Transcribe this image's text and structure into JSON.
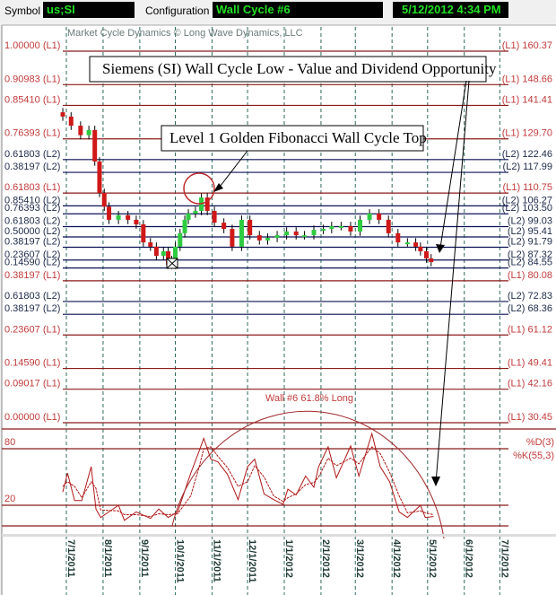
{
  "header": {
    "symbol_label": "Symbol",
    "symbol_value": "us;SI",
    "config_label": "Configuration",
    "config_value": "Wall Cycle #6",
    "datetime": "5/12/2012 4:34 PM"
  },
  "colors": {
    "l1": "#8b1a1a",
    "l1_text": "#c23a3a",
    "l2": "#0c1254",
    "l2_text": "#1e2a4a",
    "up": "#2ecc40",
    "down": "#d01818",
    "grid": "#2e6b5e",
    "value_box_text": "#22e022"
  },
  "chart_data": {
    "type": "candlestick",
    "watermark": "Market Cycle Dynamics © Long Wave Dynamics, LLC",
    "x_ticks": [
      "7/1/2011",
      "8/1/2011",
      "9/1/2011",
      "10/1/2011",
      "11/1/2011",
      "12/1/2011",
      "1/1/2012",
      "2/1/2012",
      "3/1/2012",
      "4/1/2012",
      "5/1/2012",
      "6/1/2012",
      "7/1/2012"
    ],
    "ylim": [
      30.45,
      160.37
    ],
    "levels": [
      {
        "ratio": "1.00000 (L1)",
        "price": 160.37,
        "label": "(L1) 160.37",
        "level": "L1"
      },
      {
        "ratio": "0.90983 (L1)",
        "price": 148.66,
        "label": "(L1) 148.66",
        "level": "L1"
      },
      {
        "ratio": "0.85410 (L1)",
        "price": 141.41,
        "label": "(L1) 141.41",
        "level": "L1"
      },
      {
        "ratio": "0.76393 (L1)",
        "price": 129.7,
        "label": "(L1) 129.70",
        "level": "L1"
      },
      {
        "ratio": "0.61803 (L2)",
        "price": 122.46,
        "label": "(L2) 122.46",
        "level": "L2"
      },
      {
        "ratio": "0.38197 (L2)",
        "price": 117.99,
        "label": "(L2) 117.99",
        "level": "L2"
      },
      {
        "ratio": "0.61803 (L1)",
        "price": 110.75,
        "label": "(L1) 110.75",
        "level": "L1"
      },
      {
        "ratio": "0.85410 (L2)",
        "price": 106.27,
        "label": "(L2) 106.27",
        "level": "L2"
      },
      {
        "ratio": "0.76393 (L2)",
        "price": 103.5,
        "label": "(L2) 103.50",
        "level": "L2"
      },
      {
        "ratio": "0.61803 (L2)",
        "price": 99.03,
        "label": "(L2) 99.03",
        "level": "L2"
      },
      {
        "ratio": "0.50000 (L2)",
        "price": 95.41,
        "label": "(L2) 95.41",
        "level": "L2"
      },
      {
        "ratio": "0.38197 (L2)",
        "price": 91.79,
        "label": "(L2) 91.79",
        "level": "L2"
      },
      {
        "ratio": "0.23607 (L2)",
        "price": 87.32,
        "label": "(L2) 87.32",
        "level": "L2"
      },
      {
        "ratio": "0.14590 (L2)",
        "price": 84.55,
        "label": "(L2) 84.55",
        "level": "L2"
      },
      {
        "ratio": "0.38197 (L1)",
        "price": 80.08,
        "label": "(L1) 80.08",
        "level": "L1"
      },
      {
        "ratio": "0.61803 (L2)",
        "price": 72.83,
        "label": "(L2) 72.83",
        "level": "L2"
      },
      {
        "ratio": "0.38197 (L2)",
        "price": 68.36,
        "label": "(L2) 68.36",
        "level": "L2"
      },
      {
        "ratio": "0.23607 (L1)",
        "price": 61.12,
        "label": "(L1) 61.12",
        "level": "L1"
      },
      {
        "ratio": "0.14590 (L1)",
        "price": 49.41,
        "label": "(L1) 49.41",
        "level": "L1"
      },
      {
        "ratio": "0.09017 (L1)",
        "price": 42.16,
        "label": "(L1) 42.16",
        "level": "L1"
      },
      {
        "ratio": "0.00000 (L1)",
        "price": 30.45,
        "label": "(L1) 30.45",
        "level": "L1"
      }
    ],
    "closes": {
      "dates": [
        "2011-06-28",
        "2011-07-05",
        "2011-07-13",
        "2011-07-20",
        "2011-07-25",
        "2011-07-29",
        "2011-08-02",
        "2011-08-06",
        "2011-08-14",
        "2011-08-22",
        "2011-08-29",
        "2011-09-04",
        "2011-09-10",
        "2011-09-15",
        "2011-09-21",
        "2011-09-25",
        "2011-09-28",
        "2011-10-01",
        "2011-10-05",
        "2011-10-09",
        "2011-10-12",
        "2011-10-18",
        "2011-10-23",
        "2011-10-28",
        "2011-11-03",
        "2011-11-11",
        "2011-11-18",
        "2011-11-26",
        "2011-12-03",
        "2011-12-11",
        "2011-12-18",
        "2011-12-26",
        "2012-01-03",
        "2012-01-11",
        "2012-01-18",
        "2012-01-26",
        "2012-02-03",
        "2012-02-10",
        "2012-02-18",
        "2012-02-26",
        "2012-03-05",
        "2012-03-13",
        "2012-03-21",
        "2012-03-29",
        "2012-04-06",
        "2012-04-14",
        "2012-04-21",
        "2012-04-25",
        "2012-04-30",
        "2012-05-04"
      ],
      "values": [
        137.5,
        134.3,
        131.0,
        132.8,
        121.8,
        110.8,
        106.0,
        101.4,
        103.0,
        101.4,
        99.8,
        93.5,
        92.0,
        88.8,
        90.4,
        85.7,
        87.3,
        92.0,
        96.7,
        101.4,
        103.6,
        104.5,
        109.2,
        104.5,
        100.4,
        98.2,
        92.0,
        101.4,
        96.0,
        94.2,
        95.1,
        96.0,
        97.3,
        96.0,
        96.0,
        97.9,
        98.2,
        99.2,
        99.2,
        97.3,
        101.4,
        103.6,
        101.4,
        96.7,
        93.5,
        93.5,
        92.0,
        90.4,
        87.9,
        86.6
      ]
    },
    "oscillator": {
      "labels": {
        "upper": "80",
        "lower": "20",
        "d": "%D(3)",
        "k": "%K(55,3)"
      },
      "ylim": [
        0,
        100
      ],
      "bands": [
        80,
        20
      ],
      "dates": [
        "2011-06-28",
        "2011-07-02",
        "2011-07-08",
        "2011-07-14",
        "2011-07-22",
        "2011-07-26",
        "2011-07-30",
        "2011-08-14",
        "2011-08-19",
        "2011-08-29",
        "2011-09-10",
        "2011-09-17",
        "2011-09-25",
        "2011-10-03",
        "2011-10-14",
        "2011-10-21",
        "2011-10-25",
        "2011-10-31",
        "2011-11-06",
        "2011-11-14",
        "2011-11-23",
        "2011-12-01",
        "2011-12-07",
        "2011-12-15",
        "2011-12-23",
        "2011-12-31",
        "2012-01-04",
        "2012-01-11",
        "2012-01-19",
        "2012-01-26",
        "2012-01-30",
        "2012-02-07",
        "2012-02-14",
        "2012-02-26",
        "2012-03-04",
        "2012-03-15",
        "2012-03-22",
        "2012-03-30",
        "2012-04-07",
        "2012-04-14",
        "2012-04-25",
        "2012-04-29",
        "2012-05-06"
      ],
      "k": [
        34,
        54,
        25,
        25,
        61,
        16,
        7,
        20,
        4,
        13,
        6,
        16,
        7,
        13,
        54,
        77,
        91,
        69,
        66,
        53,
        26,
        61,
        69,
        32,
        26,
        21,
        37,
        31,
        51,
        39,
        61,
        82,
        49,
        83,
        51,
        96,
        61,
        45,
        13,
        7,
        20,
        7,
        8
      ],
      "d": [
        40,
        45,
        40,
        28,
        45,
        38,
        15,
        14,
        10,
        10,
        8,
        11,
        10,
        11,
        30,
        60,
        80,
        82,
        72,
        60,
        40,
        45,
        62,
        50,
        30,
        24,
        28,
        32,
        42,
        44,
        50,
        70,
        62,
        70,
        64,
        82,
        75,
        55,
        30,
        12,
        14,
        12,
        10
      ]
    },
    "annotations": {
      "title_box": "Siemens (SI) Wall Cycle Low - Value and Dividend Opportunity",
      "top_box": "Level 1 Golden Fibonacci Wall Cycle Top",
      "arc_label": "Wall #6 61.8% Long"
    }
  }
}
